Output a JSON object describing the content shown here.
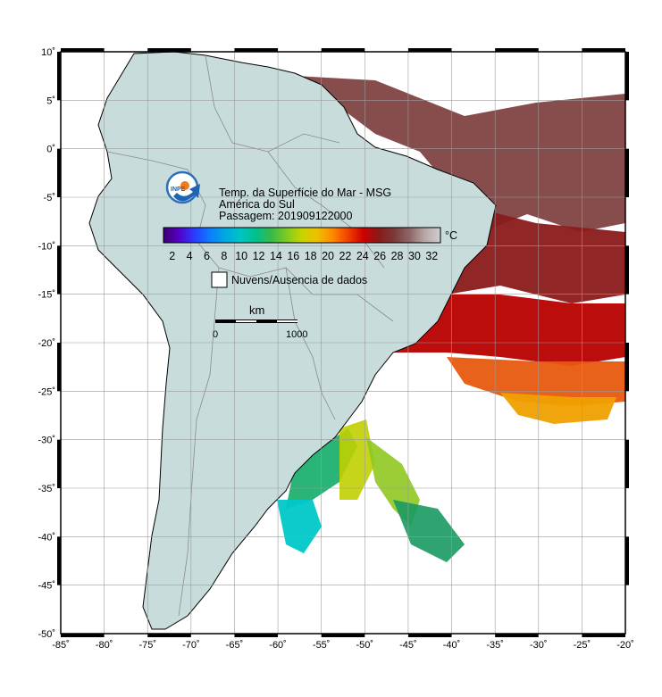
{
  "title": {
    "line1": "Temp. da Superfície do Mar - MSG",
    "line2": "América do Sul",
    "line3": "Passagem: 201909122000"
  },
  "logo_text": "INPE",
  "colorbar": {
    "unit": "°C",
    "ticks": [
      "2",
      "4",
      "6",
      "8",
      "10",
      "12",
      "14",
      "16",
      "18",
      "20",
      "22",
      "24",
      "26",
      "28",
      "30",
      "32"
    ],
    "colors": [
      "#3b0070",
      "#5500c8",
      "#2a3bff",
      "#0c7cff",
      "#00a8e0",
      "#00c4c4",
      "#00c08a",
      "#38b84a",
      "#7ccc22",
      "#c8d400",
      "#f0c000",
      "#ff8800",
      "#f04000",
      "#cc0000",
      "#8a1a1a",
      "#7a3a3a",
      "#8f6666",
      "#b9a8a8",
      "#cfcfcf"
    ]
  },
  "legend_clouds": "Nuvens/Ausencia de dados",
  "scale_bar": {
    "unit": "km",
    "start": "0",
    "end": "1000"
  },
  "axes": {
    "lat_labels": [
      "10˚",
      "5˚",
      "0˚",
      "-5˚",
      "-10˚",
      "-15˚",
      "-20˚",
      "-25˚",
      "-30˚",
      "-35˚",
      "-40˚",
      "-45˚",
      "-50˚"
    ],
    "lon_labels": [
      "-85˚",
      "-80˚",
      "-75˚",
      "-70˚",
      "-65˚",
      "-60˚",
      "-55˚",
      "-50˚",
      "-45˚",
      "-40˚",
      "-35˚",
      "-30˚",
      "-25˚",
      "-20˚"
    ]
  },
  "colors": {
    "land": "#c9dcdc",
    "ocean": "#ffffff",
    "grid": "#9a9a9a",
    "border": "#888888"
  }
}
